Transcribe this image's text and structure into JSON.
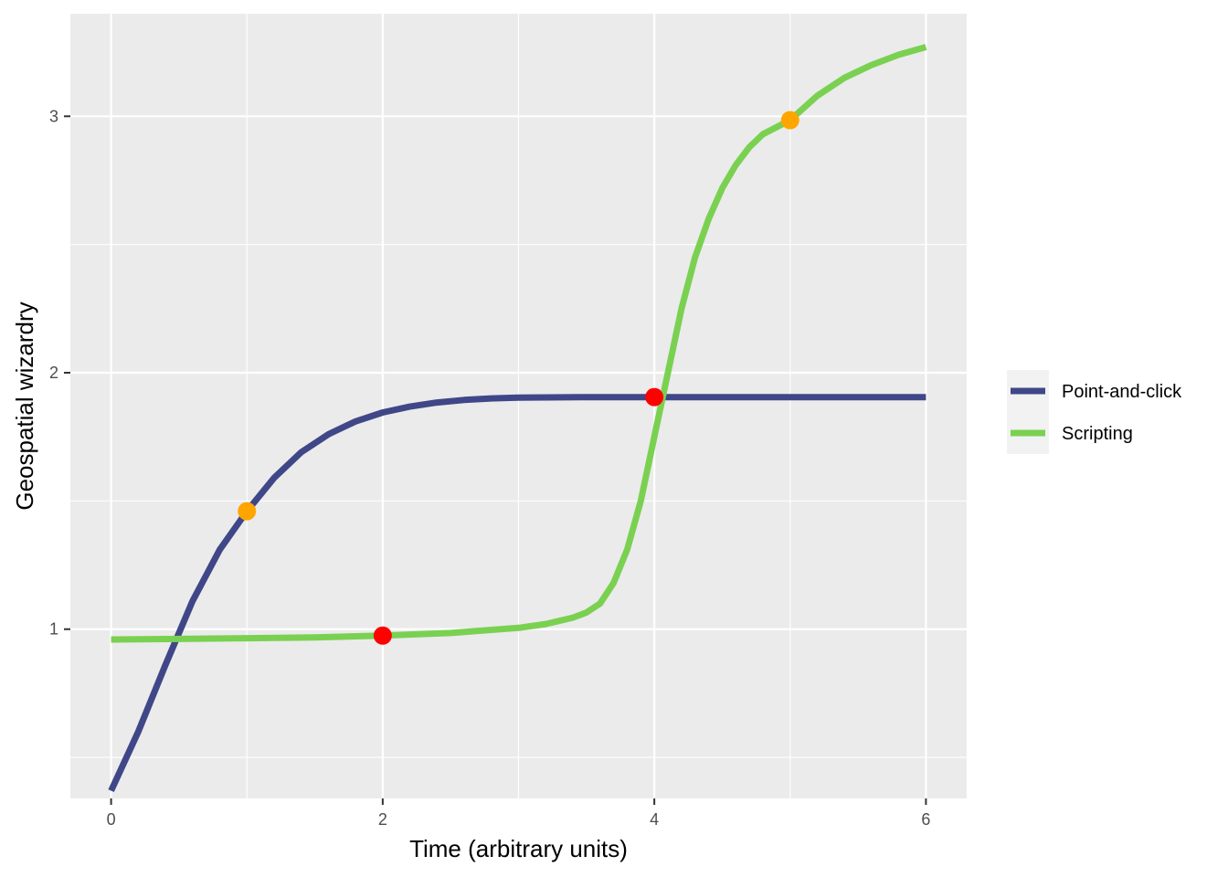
{
  "chart_data": {
    "type": "line",
    "title": "",
    "xlabel": "Time (arbitrary units)",
    "ylabel": "Geospatial wizardry",
    "xlim": [
      -0.3,
      6.3
    ],
    "ylim": [
      0.34,
      3.4
    ],
    "x_ticks": [
      0,
      2,
      4,
      6
    ],
    "x_tick_labels": [
      "0",
      "2",
      "4",
      "6"
    ],
    "y_ticks": [
      1,
      2,
      3
    ],
    "y_tick_labels": [
      "1",
      "2",
      "3"
    ],
    "grid": true,
    "background": "#EBEBEB",
    "legend_position": "right",
    "series": [
      {
        "name": "Point-and-click",
        "color": "#404788",
        "x": [
          0,
          0.2,
          0.4,
          0.6,
          0.8,
          1.0,
          1.2,
          1.4,
          1.6,
          1.8,
          2.0,
          2.2,
          2.4,
          2.6,
          2.8,
          3.0,
          3.5,
          4.0,
          4.5,
          5.0,
          5.5,
          6.0
        ],
        "y": [
          0.37,
          0.6,
          0.86,
          1.11,
          1.31,
          1.46,
          1.59,
          1.69,
          1.76,
          1.81,
          1.845,
          1.868,
          1.884,
          1.894,
          1.9,
          1.903,
          1.905,
          1.905,
          1.905,
          1.905,
          1.905,
          1.905
        ]
      },
      {
        "name": "Scripting",
        "color": "#7AD151",
        "x": [
          0,
          0.5,
          1.0,
          1.5,
          2.0,
          2.5,
          3.0,
          3.2,
          3.4,
          3.5,
          3.6,
          3.7,
          3.8,
          3.9,
          4.0,
          4.1,
          4.2,
          4.3,
          4.4,
          4.5,
          4.6,
          4.7,
          4.8,
          5.0,
          5.2,
          5.4,
          5.6,
          5.8,
          6.0
        ],
        "y": [
          0.96,
          0.962,
          0.965,
          0.968,
          0.975,
          0.985,
          1.005,
          1.02,
          1.045,
          1.065,
          1.1,
          1.18,
          1.31,
          1.5,
          1.75,
          2.0,
          2.25,
          2.45,
          2.6,
          2.72,
          2.81,
          2.88,
          2.93,
          2.985,
          3.08,
          3.15,
          3.2,
          3.24,
          3.27
        ]
      }
    ],
    "points": [
      {
        "series": "Point-and-click",
        "x": 1,
        "y": 1.46,
        "color": "#FFA500"
      },
      {
        "series": "Scripting",
        "x": 2,
        "y": 0.975,
        "color": "#FF0000"
      },
      {
        "series": "Point-and-click",
        "x": 4,
        "y": 1.905,
        "color": "#FF0000"
      },
      {
        "series": "Scripting",
        "x": 5,
        "y": 2.985,
        "color": "#FFA500"
      }
    ]
  }
}
